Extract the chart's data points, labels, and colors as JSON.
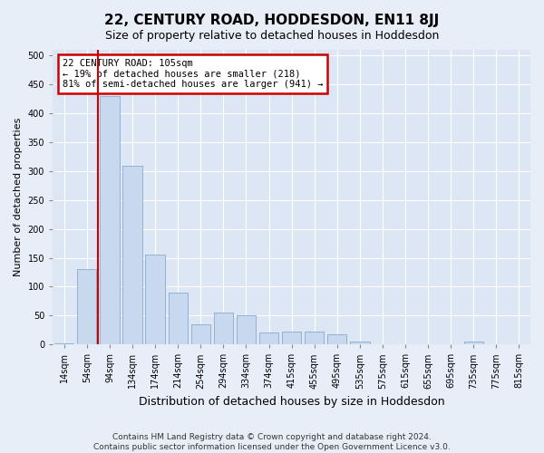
{
  "title": "22, CENTURY ROAD, HODDESDON, EN11 8JJ",
  "subtitle": "Size of property relative to detached houses in Hoddesdon",
  "xlabel": "Distribution of detached houses by size in Hoddesdon",
  "ylabel": "Number of detached properties",
  "footer_line1": "Contains HM Land Registry data © Crown copyright and database right 2024.",
  "footer_line2": "Contains public sector information licensed under the Open Government Licence v3.0.",
  "bar_labels": [
    "14sqm",
    "54sqm",
    "94sqm",
    "134sqm",
    "174sqm",
    "214sqm",
    "254sqm",
    "294sqm",
    "334sqm",
    "374sqm",
    "415sqm",
    "455sqm",
    "495sqm",
    "535sqm",
    "575sqm",
    "615sqm",
    "655sqm",
    "695sqm",
    "735sqm",
    "775sqm",
    "815sqm"
  ],
  "bar_values": [
    2,
    130,
    430,
    310,
    155,
    90,
    35,
    55,
    50,
    20,
    22,
    22,
    18,
    5,
    0,
    0,
    0,
    0,
    5,
    0,
    0
  ],
  "bar_color": "#c8d8ee",
  "bar_edge_color": "#88aacc",
  "ylim": [
    0,
    510
  ],
  "yticks": [
    0,
    50,
    100,
    150,
    200,
    250,
    300,
    350,
    400,
    450,
    500
  ],
  "vline_x_index": 1.5,
  "vline_color": "#cc0000",
  "annotation_text": "22 CENTURY ROAD: 105sqm\n← 19% of detached houses are smaller (218)\n81% of semi-detached houses are larger (941) →",
  "annotation_box_edge": "#cc0000",
  "bg_color": "#e8eef8",
  "plot_bg_color": "#dde6f4",
  "title_fontsize": 11,
  "subtitle_fontsize": 9,
  "ylabel_fontsize": 8,
  "xlabel_fontsize": 9,
  "tick_fontsize": 7,
  "footer_fontsize": 6.5
}
